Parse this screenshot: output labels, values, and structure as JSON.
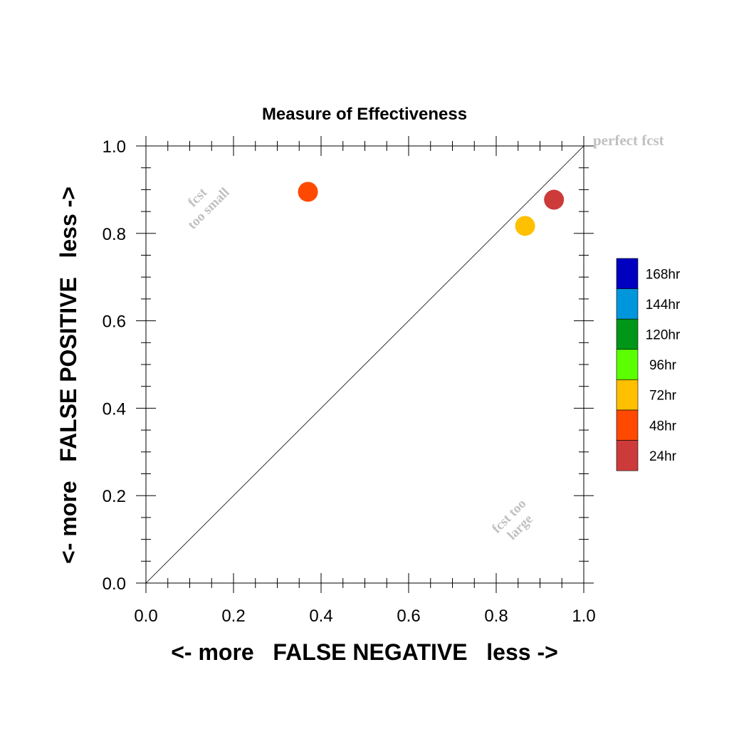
{
  "chart_data": {
    "type": "scatter",
    "title": "Measure of Effectiveness",
    "xlabel": "<- more   FALSE NEGATIVE   less ->",
    "ylabel": "<- more   FALSE POSITIVE   less ->",
    "xlim": [
      0.0,
      1.0
    ],
    "ylim": [
      0.0,
      1.0
    ],
    "x_ticks": [
      "0.0",
      "0.2",
      "0.4",
      "0.6",
      "0.8",
      "1.0"
    ],
    "y_ticks": [
      "0.0",
      "0.2",
      "0.4",
      "0.6",
      "0.8",
      "1.0"
    ],
    "grid": false,
    "reference_line": {
      "x": [
        0,
        1
      ],
      "y": [
        0,
        1
      ]
    },
    "annotations": {
      "perfect": "perfect fcst",
      "too_small_1": "fcst",
      "too_small_2": "too small",
      "too_large_1": "fcst too",
      "too_large_2": "large"
    },
    "legend": {
      "placement": "right",
      "entries": [
        {
          "label": "168hr",
          "color": "#0000c0"
        },
        {
          "label": "144hr",
          "color": "#0096dc"
        },
        {
          "label": "120hr",
          "color": "#009618"
        },
        {
          "label": "96hr",
          "color": "#5aff00"
        },
        {
          "label": "72hr",
          "color": "#ffc000"
        },
        {
          "label": "48hr",
          "color": "#ff4800"
        },
        {
          "label": "24hr",
          "color": "#cc3a3a"
        }
      ]
    },
    "points": [
      {
        "lead": "48hr",
        "x": 0.37,
        "y": 0.895,
        "color": "#ff4800"
      },
      {
        "lead": "72hr",
        "x": 0.866,
        "y": 0.817,
        "color": "#ffc000"
      },
      {
        "lead": "24hr",
        "x": 0.932,
        "y": 0.877,
        "color": "#cc3a3a"
      }
    ]
  }
}
